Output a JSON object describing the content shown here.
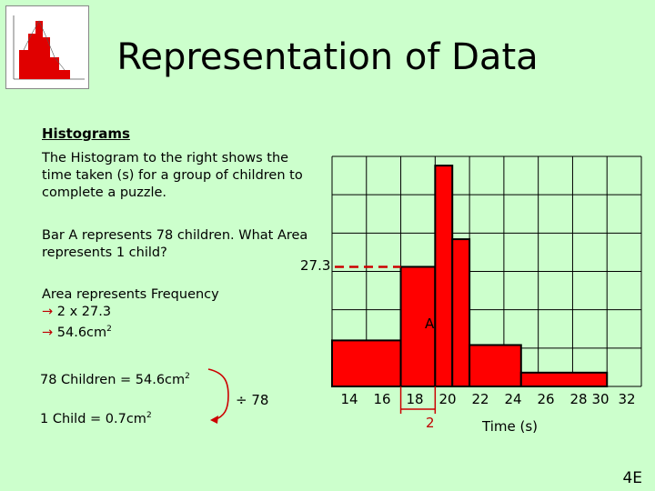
{
  "title": "Representation of Data",
  "heading": "Histograms",
  "intro_lines": [
    "The Histogram to the right shows the",
    "time taken (s) for a group of children to",
    "complete a puzzle."
  ],
  "question_lines": [
    "Bar A represents 78 children. What Area",
    "represents 1 child?"
  ],
  "readout_value": "27.3",
  "area_lines": {
    "line1": "Area represents Frequency",
    "arrow": "→",
    "line2": "2 x 27.3",
    "line3": "54.6cm",
    "line3_sup": "2"
  },
  "children_eq": {
    "text": "78 Children = 54.6cm",
    "sup": "2"
  },
  "child_eq": {
    "text": "1 Child = 0.7cm",
    "sup": "2"
  },
  "divide_label": "÷ 78",
  "bar_label": "A",
  "width_label": "2",
  "x_axis_label": "Time (s)",
  "slide_tag": "4E",
  "colors": {
    "background": "#ccffcc",
    "bar": "#ff0000",
    "bar_outline": "#000000",
    "accent_text": "#c00000",
    "arrow": "#cc0000"
  },
  "chart_data": {
    "type": "bar",
    "x_tick_labels": [
      "14",
      "16",
      "18",
      "20",
      "22",
      "24",
      "26",
      "28",
      "30",
      "32"
    ],
    "bins": [
      {
        "from": 14,
        "to": 18,
        "frequency_density": 1.0
      },
      {
        "from": 18,
        "to": 20,
        "frequency_density": 2.6
      },
      {
        "from": 20,
        "to": 21,
        "frequency_density": 4.8
      },
      {
        "from": 21,
        "to": 22,
        "frequency_density": 3.2
      },
      {
        "from": 22,
        "to": 25,
        "frequency_density": 0.9
      },
      {
        "from": 25,
        "to": 30,
        "frequency_density": 0.3
      }
    ],
    "marked_bar": {
      "label": "A",
      "from": 18,
      "to": 20,
      "height_label": "27.3"
    },
    "xlabel": "Time (s)",
    "x_range": [
      14,
      32
    ],
    "grid": true
  }
}
